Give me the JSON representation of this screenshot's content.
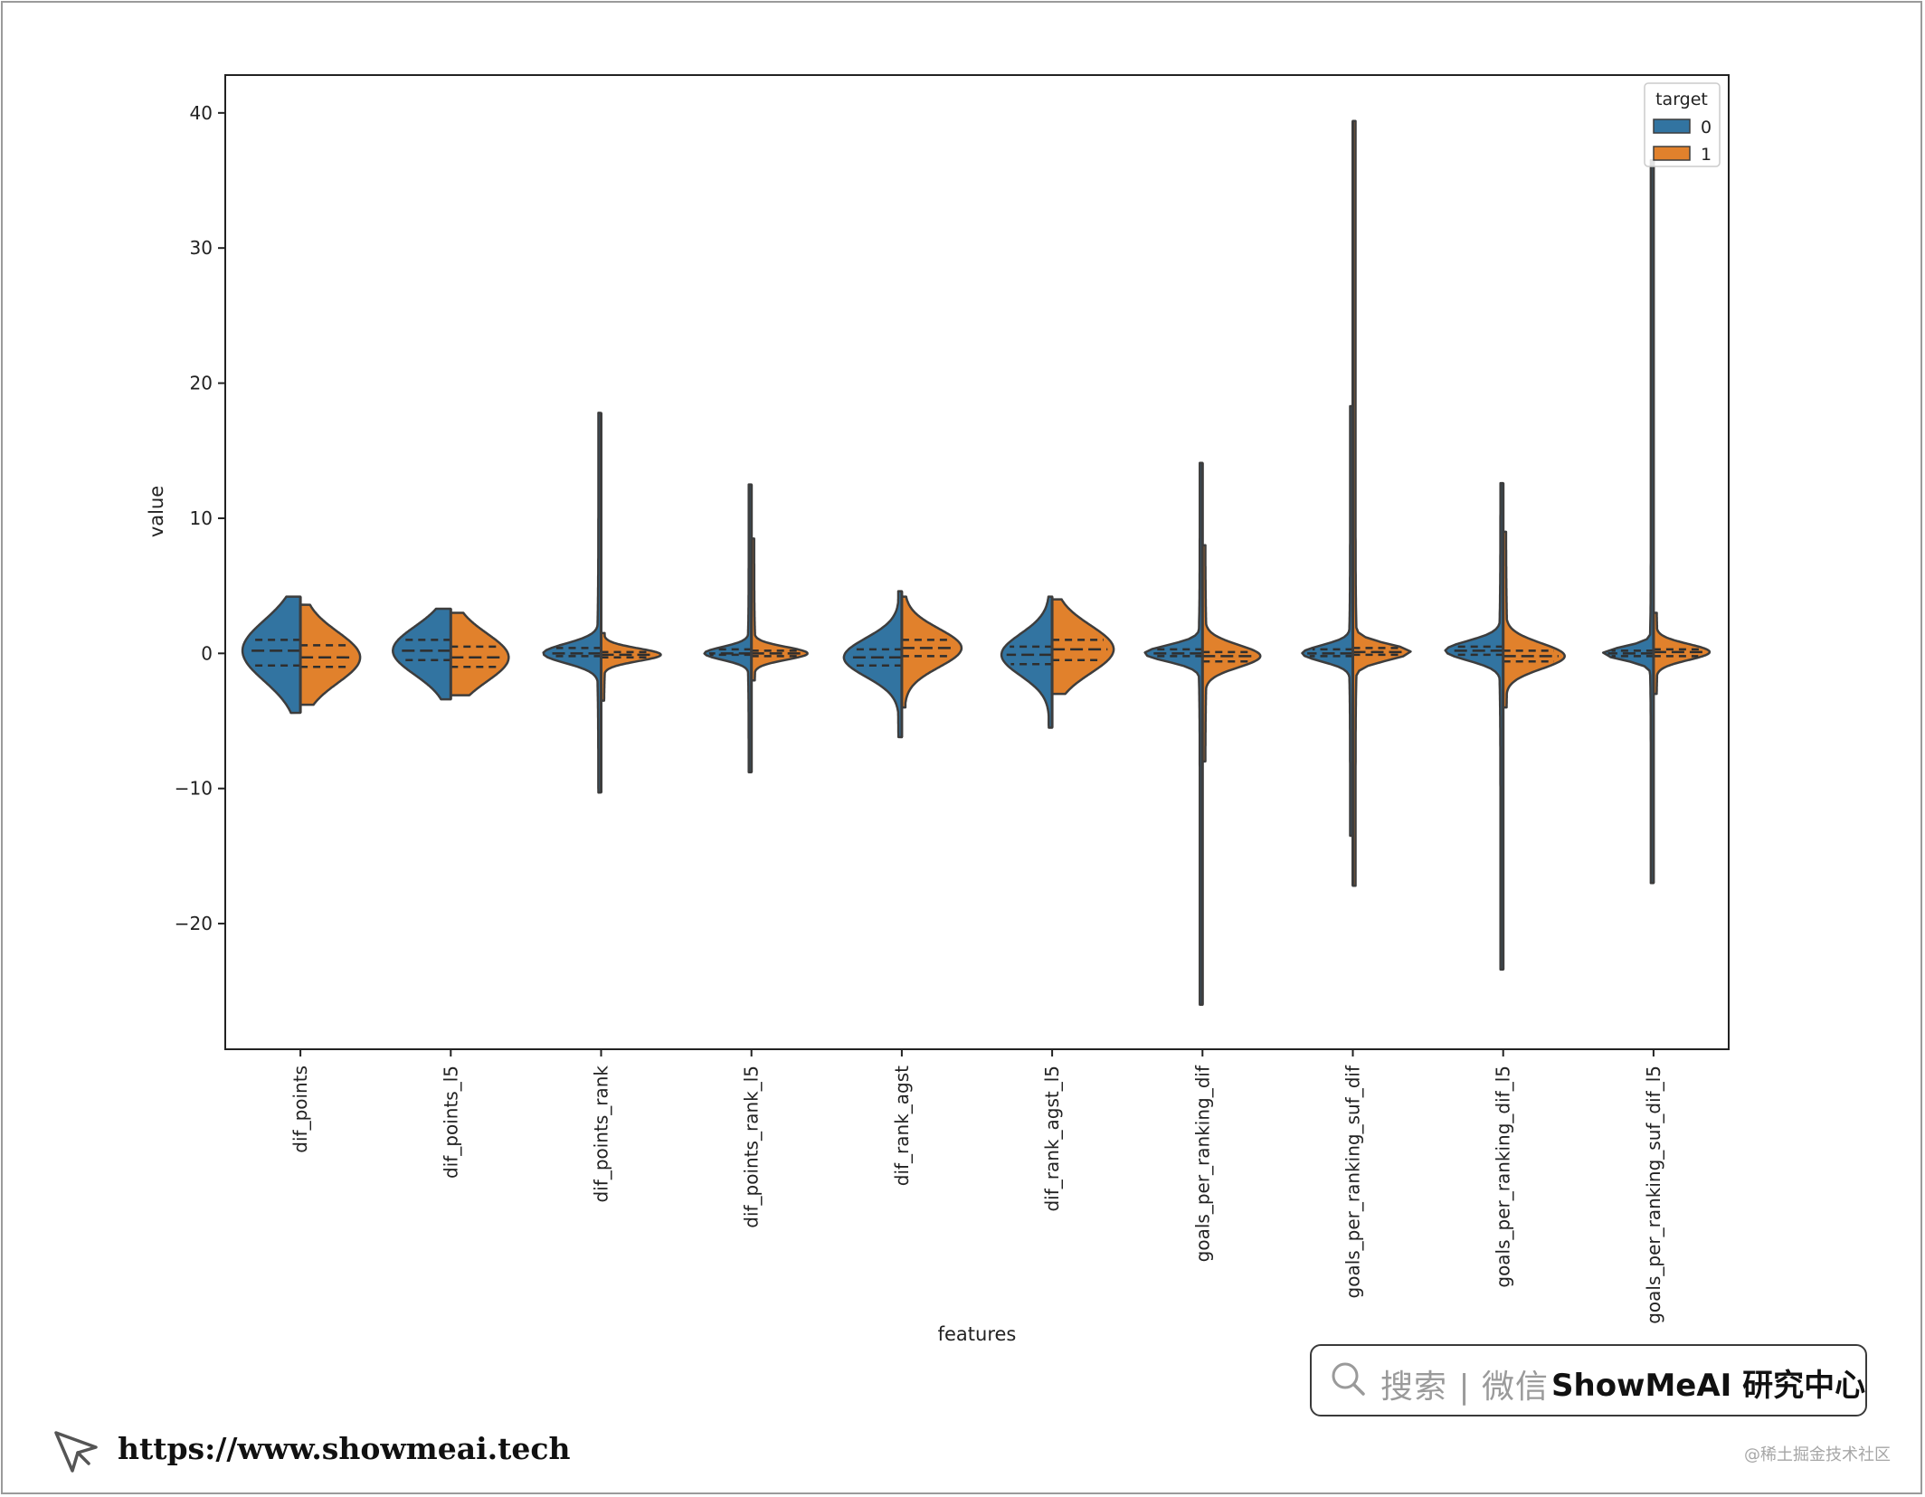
{
  "chart_data": {
    "type": "violin",
    "split": true,
    "inner": "quartile",
    "xlabel": "features",
    "ylabel": "value",
    "ylim": [
      -29.3,
      42.8
    ],
    "yticks": [
      -20,
      -10,
      0,
      10,
      20,
      30,
      40
    ],
    "ytick_labels": [
      "−20",
      "−10",
      "0",
      "10",
      "20",
      "30",
      "40"
    ],
    "categories": [
      "dif_points",
      "dif_points_l5",
      "dif_points_rank",
      "dif_points_rank_l5",
      "dif_rank_agst",
      "dif_rank_agst_l5",
      "goals_per_ranking_dif",
      "goals_per_ranking_suf_dif",
      "goals_per_ranking_dif_l5",
      "goals_per_ranking_suf_dif_l5"
    ],
    "legend": {
      "title": "target",
      "position": "top-right",
      "entries": [
        "0",
        "1"
      ]
    },
    "colors": {
      "0": "#3274a1",
      "1": "#e1812c",
      "outline": "#3d3d3d"
    },
    "series": [
      {
        "name": "0",
        "violins": [
          {
            "min": -4.4,
            "max": 4.2,
            "q1": -0.9,
            "median": 0.2,
            "q3": 1.0
          },
          {
            "min": -3.4,
            "max": 3.3,
            "q1": -0.5,
            "median": 0.2,
            "q3": 1.0
          },
          {
            "min": -10.3,
            "max": 17.8,
            "q1": -0.2,
            "median": 0.0,
            "q3": 0.4
          },
          {
            "min": -8.8,
            "max": 12.5,
            "q1": -0.1,
            "median": 0.0,
            "q3": 0.3
          },
          {
            "min": -6.2,
            "max": 4.6,
            "q1": -0.9,
            "median": -0.3,
            "q3": 0.3
          },
          {
            "min": -5.5,
            "max": 4.2,
            "q1": -0.8,
            "median": -0.1,
            "q3": 0.5
          },
          {
            "min": -26.0,
            "max": 14.1,
            "q1": -0.2,
            "median": 0.0,
            "q3": 0.3
          },
          {
            "min": -13.5,
            "max": 18.3,
            "q1": -0.2,
            "median": 0.0,
            "q3": 0.3
          },
          {
            "min": -23.4,
            "max": 12.6,
            "q1": -0.1,
            "median": 0.2,
            "q3": 0.5
          },
          {
            "min": -17.0,
            "max": 36.5,
            "q1": -0.2,
            "median": 0.0,
            "q3": 0.2
          }
        ]
      },
      {
        "name": "1",
        "violins": [
          {
            "min": -3.8,
            "max": 3.6,
            "q1": -1.0,
            "median": -0.3,
            "q3": 0.6
          },
          {
            "min": -3.1,
            "max": 3.0,
            "q1": -1.0,
            "median": -0.3,
            "q3": 0.5
          },
          {
            "min": -3.5,
            "max": 1.5,
            "q1": -0.3,
            "median": -0.1,
            "q3": 0.1
          },
          {
            "min": -2.0,
            "max": 8.5,
            "q1": -0.2,
            "median": 0.0,
            "q3": 0.2
          },
          {
            "min": -4.0,
            "max": 4.2,
            "q1": -0.2,
            "median": 0.4,
            "q3": 1.0
          },
          {
            "min": -3.0,
            "max": 4.0,
            "q1": -0.5,
            "median": 0.3,
            "q3": 1.0
          },
          {
            "min": -8.0,
            "max": 8.0,
            "q1": -0.6,
            "median": -0.2,
            "q3": 0.1
          },
          {
            "min": -17.2,
            "max": 39.4,
            "q1": -0.1,
            "median": 0.1,
            "q3": 0.4
          },
          {
            "min": -4.0,
            "max": 9.0,
            "q1": -0.6,
            "median": -0.2,
            "q3": 0.2
          },
          {
            "min": -3.0,
            "max": 3.0,
            "q1": -0.2,
            "median": 0.1,
            "q3": 0.3
          }
        ]
      }
    ],
    "widths": [
      {
        "left": 64,
        "right": 66
      },
      {
        "left": 64,
        "right": 64
      },
      {
        "left": 64,
        "right": 66
      },
      {
        "left": 52,
        "right": 62
      },
      {
        "left": 64,
        "right": 66
      },
      {
        "left": 56,
        "right": 68
      },
      {
        "left": 64,
        "right": 64
      },
      {
        "left": 56,
        "right": 64
      },
      {
        "left": 64,
        "right": 68
      },
      {
        "left": 56,
        "right": 62
      }
    ]
  },
  "search": {
    "text": "搜索 | 微信",
    "brand": "ShowMeAI 研究中心"
  },
  "footer": {
    "url": "https://www.showmeai.tech",
    "watermark": "@稀土掘金技术社区"
  }
}
